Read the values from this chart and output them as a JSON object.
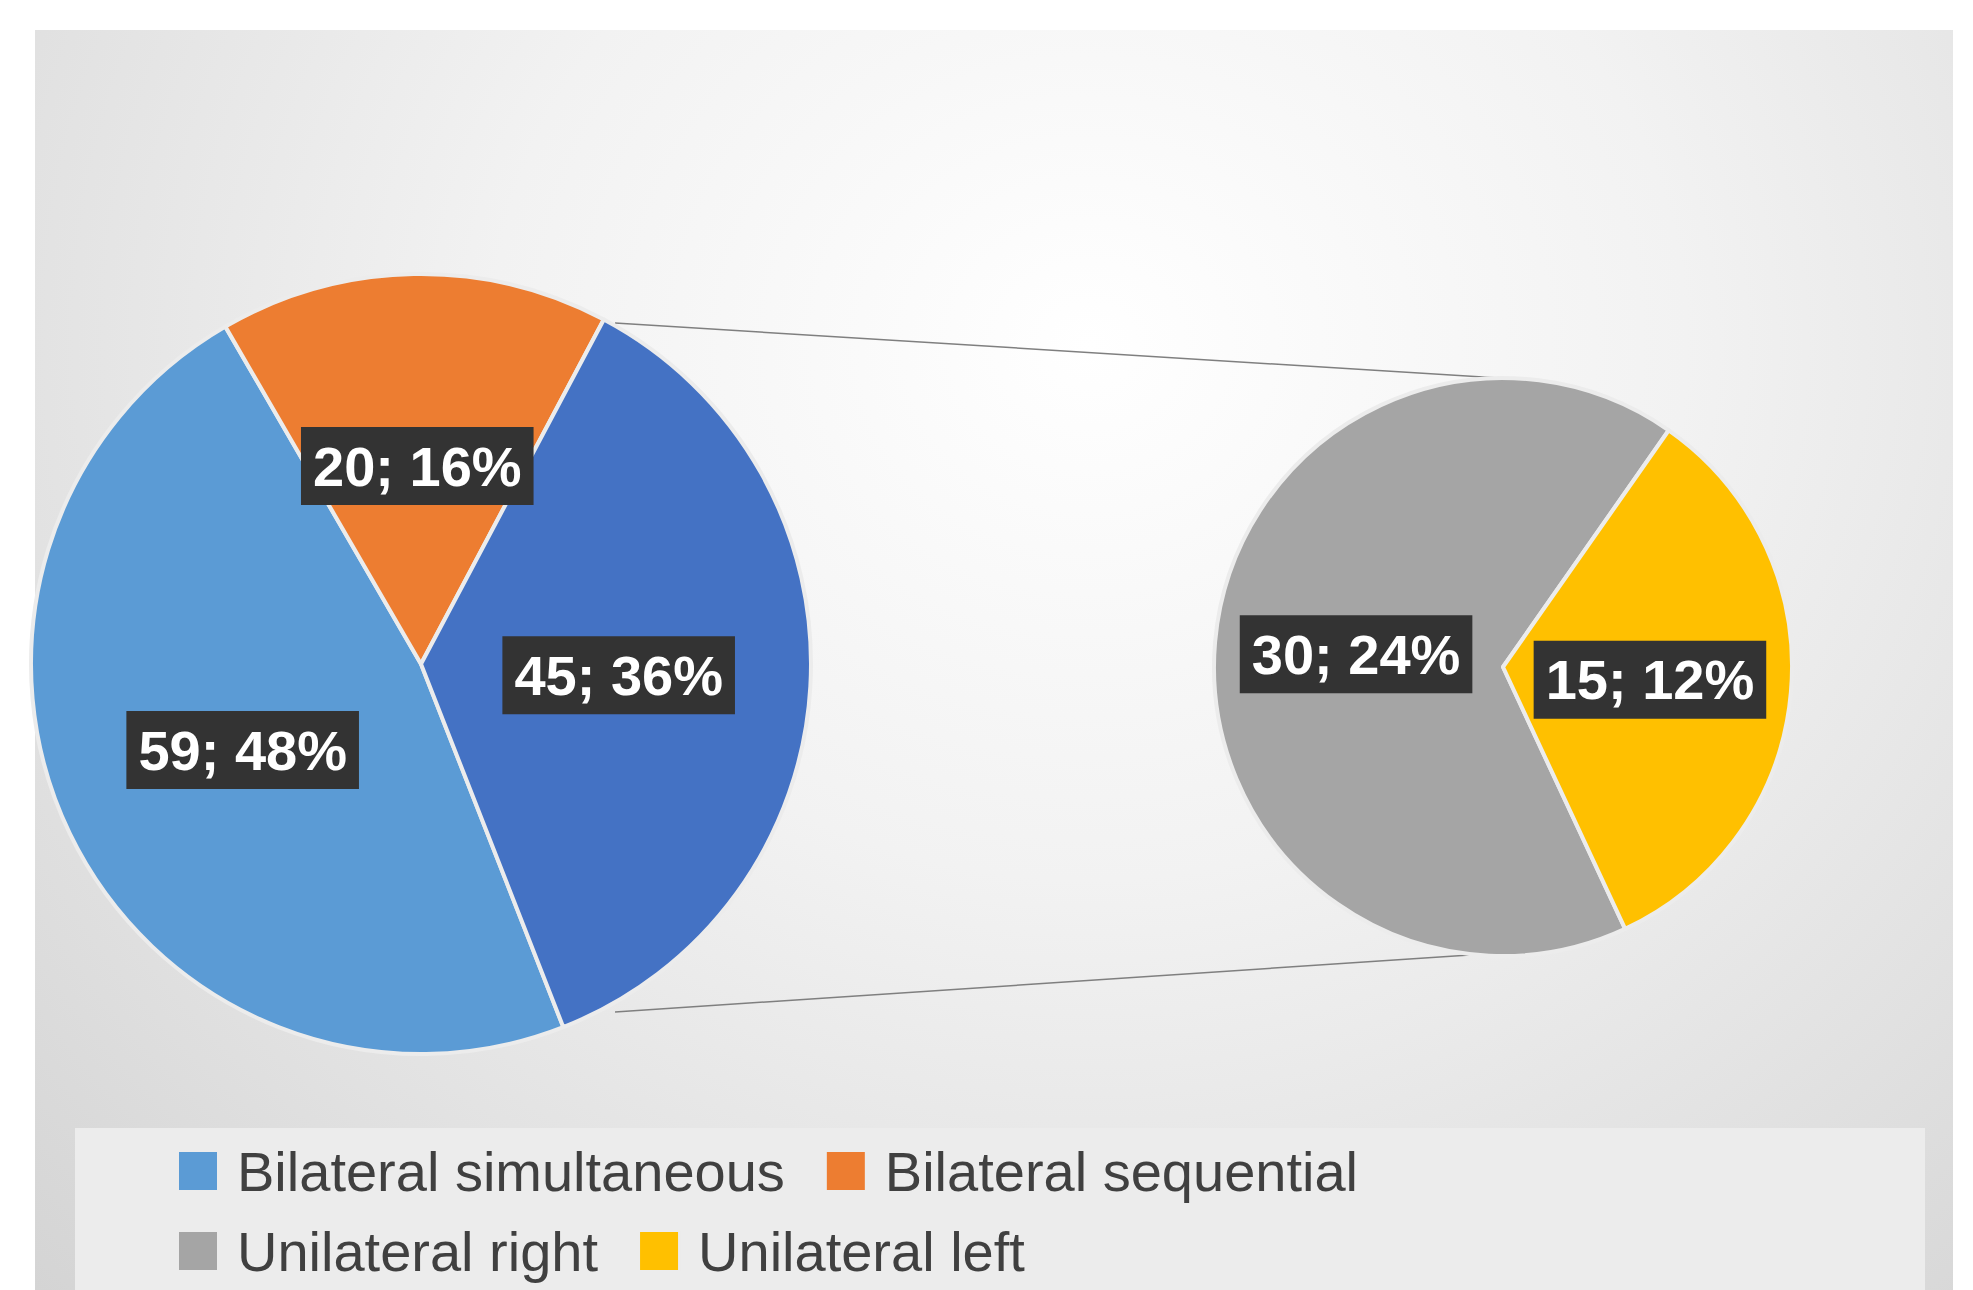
{
  "chart_data": [
    {
      "type": "pie",
      "categories": [
        "Bilateral simultaneous",
        "Bilateral sequential",
        null
      ],
      "values": [
        59,
        20,
        45
      ],
      "colors": [
        "#5b9bd5",
        "#ed7d31",
        "#4472c4"
      ],
      "value_labels": [
        "59; 48%",
        "20; 16%",
        "45; 36%"
      ],
      "legend": "bottom"
    },
    {
      "type": "pie",
      "categories": [
        "Unilateral right",
        "Unilateral left"
      ],
      "values": [
        30,
        15
      ],
      "colors": [
        "#a5a5a5",
        "#ffc000"
      ],
      "value_labels": [
        "30; 24%",
        "15; 12%"
      ],
      "legend": "bottom"
    }
  ]
}
